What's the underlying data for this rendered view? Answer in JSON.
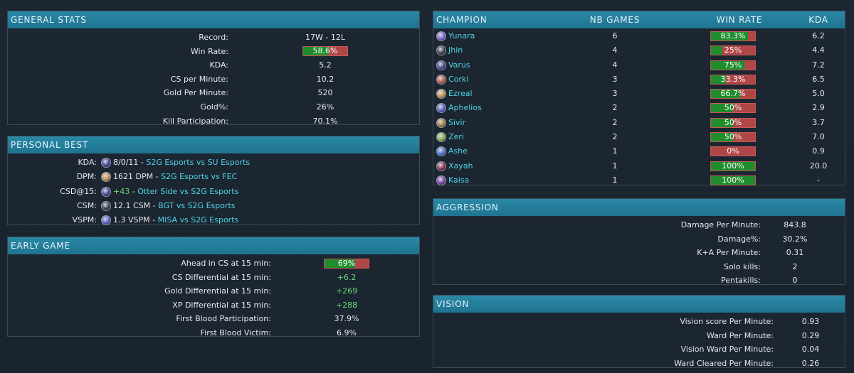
{
  "general_stats": {
    "title": "GENERAL STATS",
    "rows": [
      {
        "label": "Record:",
        "value": "17W - 12L"
      },
      {
        "label": "Win Rate:",
        "value": "58.6%",
        "fraction": 0.586
      },
      {
        "label": "KDA:",
        "value": "5.2"
      },
      {
        "label": "CS per Minute:",
        "value": "10.2"
      },
      {
        "label": "Gold Per Minute:",
        "value": "520"
      },
      {
        "label": "Gold%:",
        "value": "26%"
      },
      {
        "label": "Kill Participation:",
        "value": "70.1%"
      }
    ]
  },
  "personal_best": {
    "title": "PERSONAL BEST",
    "rows": [
      {
        "label": "KDA:",
        "icon": "varus-champion-icon",
        "stat": "8/0/11",
        "separator": " - ",
        "match": "S2G Esports vs SU Esports",
        "stat_color": "normal",
        "icon_color": "#4a3f8c"
      },
      {
        "label": "DPM:",
        "icon": "ezreal-champion-icon",
        "stat": "1621 DPM",
        "separator": " - ",
        "match": "S2G Esports vs FEC",
        "stat_color": "normal",
        "icon_color": "#c8914a"
      },
      {
        "label": "CSD@15:",
        "icon": "varus-champion-icon",
        "stat": "+43",
        "separator": " - ",
        "match": "Otter Side vs S2G Esports",
        "stat_color": "green",
        "icon_color": "#4a3f8c"
      },
      {
        "label": "CSM:",
        "icon": "jhin-champion-icon",
        "stat": "12.1 CSM",
        "separator": " - ",
        "match": "BGT vs S2G Esports",
        "stat_color": "normal",
        "icon_color": "#3d3a44"
      },
      {
        "label": "VSPM:",
        "icon": "aphelios-champion-icon",
        "stat": "1.3 VSPM",
        "separator": " - ",
        "match": "MISA vs S2G Esports",
        "stat_color": "normal",
        "icon_color": "#5a5fb8"
      }
    ]
  },
  "early_game": {
    "title": "EARLY GAME",
    "rows": [
      {
        "label": "Ahead in CS at 15 min:",
        "value": "69%",
        "fraction": 0.69
      },
      {
        "label": "CS Differential at 15 min:",
        "value": "+6.2",
        "positive": true
      },
      {
        "label": "Gold Differential at 15 min:",
        "value": "+269",
        "positive": true
      },
      {
        "label": "XP Differential at 15 min:",
        "value": "+288",
        "positive": true
      },
      {
        "label": "First Blood Participation:",
        "value": "37.9%"
      },
      {
        "label": "First Blood Victim:",
        "value": "6.9%"
      }
    ]
  },
  "champions": {
    "headers": {
      "champion": "CHAMPION",
      "games": "NB GAMES",
      "winrate": "WIN RATE",
      "kda": "KDA"
    },
    "rows": [
      {
        "name": "Yunara",
        "games": "6",
        "winrate": "83.3%",
        "fraction": 0.833,
        "kda": "6.2",
        "icon": "yunara-champion-icon",
        "icon_color": "#7a66c8"
      },
      {
        "name": "Jhin",
        "games": "4",
        "winrate": "25%",
        "fraction": 0.25,
        "kda": "4.4",
        "icon": "jhin-champion-icon",
        "icon_color": "#3d3a44"
      },
      {
        "name": "Varus",
        "games": "4",
        "winrate": "75%",
        "fraction": 0.75,
        "kda": "7.2",
        "icon": "varus-champion-icon",
        "icon_color": "#4a3f8c"
      },
      {
        "name": "Corki",
        "games": "3",
        "winrate": "33.3%",
        "fraction": 0.333,
        "kda": "6.5",
        "icon": "corki-champion-icon",
        "icon_color": "#b85a3c"
      },
      {
        "name": "Ezreal",
        "games": "3",
        "winrate": "66.7%",
        "fraction": 0.667,
        "kda": "5.0",
        "icon": "ezreal-champion-icon",
        "icon_color": "#c8914a"
      },
      {
        "name": "Aphelios",
        "games": "2",
        "winrate": "50%",
        "fraction": 0.5,
        "kda": "2.9",
        "icon": "aphelios-champion-icon",
        "icon_color": "#5a5fb8"
      },
      {
        "name": "Sivir",
        "games": "2",
        "winrate": "50%",
        "fraction": 0.5,
        "kda": "3.7",
        "icon": "sivir-champion-icon",
        "icon_color": "#a87a3a"
      },
      {
        "name": "Zeri",
        "games": "2",
        "winrate": "50%",
        "fraction": 0.5,
        "kda": "7.0",
        "icon": "zeri-champion-icon",
        "icon_color": "#8aa84a"
      },
      {
        "name": "Ashe",
        "games": "1",
        "winrate": "0%",
        "fraction": 0.0,
        "kda": "0.9",
        "icon": "ashe-champion-icon",
        "icon_color": "#4a74c8"
      },
      {
        "name": "Xayah",
        "games": "1",
        "winrate": "100%",
        "fraction": 1.0,
        "kda": "20.0",
        "icon": "xayah-champion-icon",
        "icon_color": "#8a2f4a"
      },
      {
        "name": "Kaisa",
        "games": "1",
        "winrate": "100%",
        "fraction": 1.0,
        "kda": "-",
        "icon": "kaisa-champion-icon",
        "icon_color": "#7a3f9c"
      }
    ]
  },
  "aggression": {
    "title": "AGGRESSION",
    "rows": [
      {
        "label": "Damage Per Minute:",
        "value": "843.8"
      },
      {
        "label": "Damage%:",
        "value": "30.2%"
      },
      {
        "label": "K+A Per Minute:",
        "value": "0.31"
      },
      {
        "label": "Solo kills:",
        "value": "2"
      },
      {
        "label": "Pentakills:",
        "value": "0"
      }
    ]
  },
  "vision": {
    "title": "VISION",
    "rows": [
      {
        "label": "Vision score Per Minute:",
        "value": "0.93"
      },
      {
        "label": "Ward Per Minute:",
        "value": "0.29"
      },
      {
        "label": "Vision Ward Per Minute:",
        "value": "0.04"
      },
      {
        "label": "Ward Cleared Per Minute:",
        "value": "0.26"
      }
    ]
  }
}
